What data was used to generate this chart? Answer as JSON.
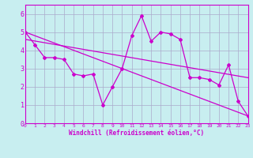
{
  "xlabel": "Windchill (Refroidissement éolien,°C)",
  "xlim": [
    0,
    23
  ],
  "ylim": [
    0,
    6.5
  ],
  "xticks": [
    0,
    1,
    2,
    3,
    4,
    5,
    6,
    7,
    8,
    9,
    10,
    11,
    12,
    13,
    14,
    15,
    16,
    17,
    18,
    19,
    20,
    21,
    22,
    23
  ],
  "yticks": [
    0,
    1,
    2,
    3,
    4,
    5,
    6
  ],
  "bg_color": "#c8eef0",
  "line_color": "#cc00cc",
  "grid_color": "#aaaacc",
  "line1_x": [
    0,
    1,
    2,
    3,
    4,
    5,
    6,
    7,
    8,
    9,
    10,
    11,
    12,
    13,
    14,
    15,
    16,
    17,
    18,
    19,
    20,
    21,
    22,
    23
  ],
  "line1_y": [
    5.0,
    4.3,
    3.6,
    3.6,
    3.5,
    2.7,
    2.6,
    2.7,
    1.0,
    2.0,
    3.0,
    4.8,
    5.9,
    4.5,
    5.0,
    4.9,
    4.6,
    2.5,
    2.5,
    2.4,
    2.1,
    3.2,
    1.2,
    0.4
  ],
  "line2_x": [
    0,
    23
  ],
  "line2_y": [
    5.0,
    0.4
  ],
  "line3_x": [
    0,
    23
  ],
  "line3_y": [
    4.6,
    2.5
  ]
}
